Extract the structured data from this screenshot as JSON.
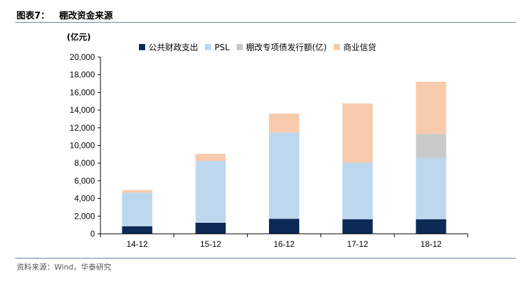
{
  "header": {
    "figure_no": "图表7：",
    "title": "棚改资金来源"
  },
  "source_note": "资料来源：Wind，华泰研究",
  "colors": {
    "rule": "#6b7fa6"
  },
  "chart_data": {
    "type": "bar",
    "stacked": true,
    "unit_label": "(亿元)",
    "categories": [
      "14-12",
      "15-12",
      "16-12",
      "17-12",
      "18-12"
    ],
    "series": [
      {
        "name": "公共财政支出",
        "color": "#0d2a56",
        "values": [
          850,
          1250,
          1700,
          1650,
          1650
        ]
      },
      {
        "name": "PSL",
        "color": "#bdd7ee",
        "values": [
          3800,
          7000,
          9750,
          6400,
          6950
        ]
      },
      {
        "name": "棚改专项债发行额(亿)",
        "color": "#c9c9c9",
        "values": [
          0,
          0,
          0,
          0,
          2700
        ]
      },
      {
        "name": "商业信贷",
        "color": "#f8cbad",
        "values": [
          300,
          800,
          2150,
          6700,
          5900
        ]
      }
    ],
    "ylim": [
      0,
      20000
    ],
    "yticks": [
      0,
      2000,
      4000,
      6000,
      8000,
      10000,
      12000,
      14000,
      16000,
      18000,
      20000
    ],
    "ytick_labels": [
      "0",
      "2,000",
      "4,000",
      "6,000",
      "8,000",
      "10,000",
      "12,000",
      "14,000",
      "16,000",
      "18,000",
      "20,000"
    ],
    "grid": false,
    "legend_position": "top"
  }
}
